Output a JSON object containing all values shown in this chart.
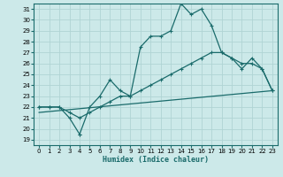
{
  "xlabel": "Humidex (Indice chaleur)",
  "xlim": [
    -0.5,
    23.5
  ],
  "ylim": [
    18.5,
    31.5
  ],
  "xticks": [
    0,
    1,
    2,
    3,
    4,
    5,
    6,
    7,
    8,
    9,
    10,
    11,
    12,
    13,
    14,
    15,
    16,
    17,
    18,
    19,
    20,
    21,
    22,
    23
  ],
  "yticks": [
    19,
    20,
    21,
    22,
    23,
    24,
    25,
    26,
    27,
    28,
    29,
    30,
    31
  ],
  "bg_color": "#cce9e9",
  "grid_color": "#b0d4d4",
  "line_color": "#1a6b6b",
  "line1_x": [
    0,
    1,
    2,
    3,
    4,
    4,
    5,
    6,
    7,
    8,
    9,
    10,
    11,
    12,
    13,
    14,
    15,
    16,
    17,
    18,
    19,
    20,
    21,
    22,
    23
  ],
  "line1_y": [
    22,
    22,
    22,
    21,
    19.5,
    19.5,
    22,
    23,
    24.5,
    23.5,
    23,
    27.5,
    28.5,
    28.5,
    29,
    31.5,
    30.5,
    31,
    29.5,
    27,
    26.5,
    25.5,
    26.5,
    25.5,
    23.5
  ],
  "line2_x": [
    0,
    1,
    2,
    3,
    4,
    5,
    6,
    7,
    8,
    9,
    10,
    11,
    12,
    13,
    14,
    15,
    16,
    17,
    18,
    19,
    20,
    21,
    22,
    23
  ],
  "line2_y": [
    22,
    22,
    22,
    21.5,
    21,
    21.5,
    22,
    22.5,
    23,
    23,
    23.5,
    24,
    24.5,
    25,
    25.5,
    26,
    26.5,
    27,
    27,
    26.5,
    26,
    26,
    25.5,
    23.5
  ],
  "line3_x": [
    0,
    23
  ],
  "line3_y": [
    21.5,
    23.5
  ]
}
